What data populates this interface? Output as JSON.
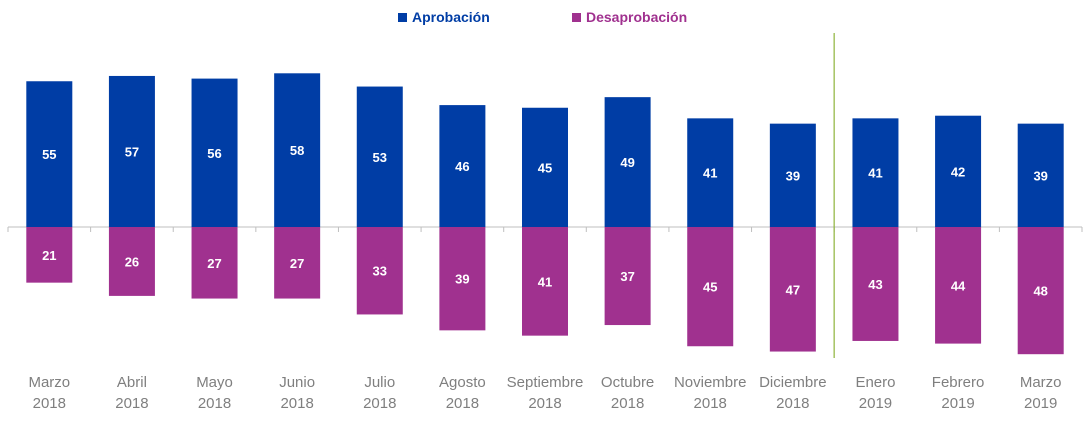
{
  "chart_data": {
    "type": "bar",
    "stacked_diverging": true,
    "categories": [
      [
        "Marzo",
        "2018"
      ],
      [
        "Abril",
        "2018"
      ],
      [
        "Mayo",
        "2018"
      ],
      [
        "Junio",
        "2018"
      ],
      [
        "Julio",
        "2018"
      ],
      [
        "Agosto",
        "2018"
      ],
      [
        "Septiembre",
        "2018"
      ],
      [
        "Octubre",
        "2018"
      ],
      [
        "Noviembre",
        "2018"
      ],
      [
        "Diciembre",
        "2018"
      ],
      [
        "Enero",
        "2019"
      ],
      [
        "Febrero",
        "2019"
      ],
      [
        "Marzo",
        "2019"
      ]
    ],
    "series": [
      {
        "name": "Aprobación",
        "color": "#003DA5",
        "direction": "up",
        "values": [
          55,
          57,
          56,
          58,
          53,
          46,
          45,
          49,
          41,
          39,
          41,
          42,
          39
        ]
      },
      {
        "name": "Desaprobación",
        "color": "#A0318F",
        "direction": "down",
        "values": [
          21,
          26,
          27,
          27,
          33,
          39,
          41,
          37,
          45,
          47,
          43,
          44,
          48
        ]
      }
    ],
    "legend_position": "top-center",
    "separator_after_category_index": 9,
    "separator_color": "#8DB33A",
    "grid": false
  }
}
